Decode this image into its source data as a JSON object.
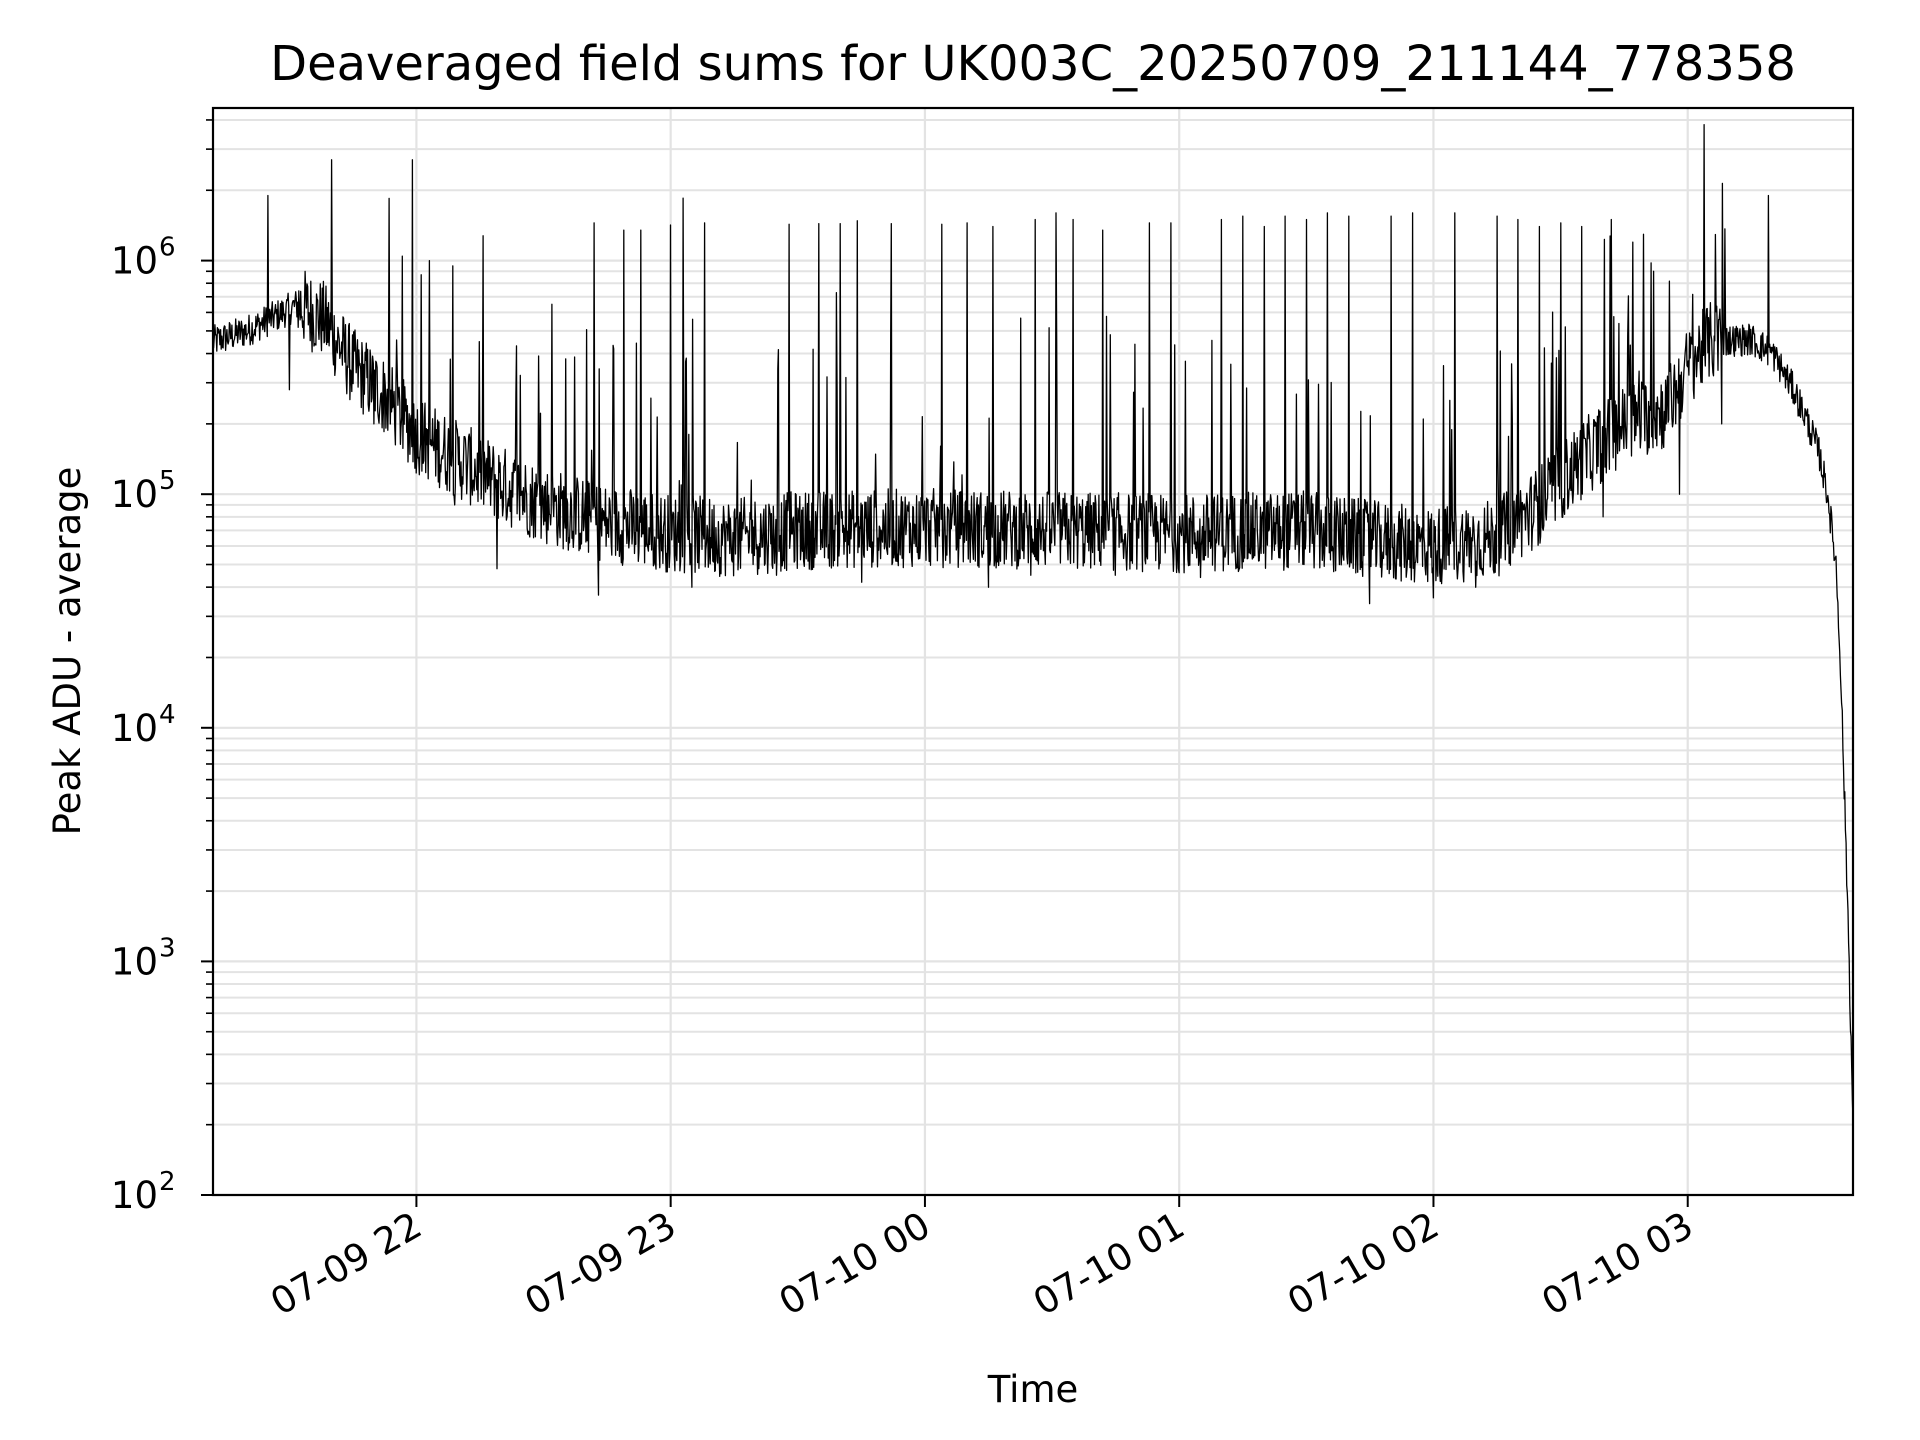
{
  "chart_data": {
    "type": "line",
    "title": "Deaveraged field sums for UK003C_20250709_211144_778358",
    "xlabel": "Time",
    "ylabel": "Peak ADU - average",
    "yscale": "log",
    "ylim": [
      100,
      4500000
    ],
    "xlim": [
      "07-09 21:12",
      "07-10 03:39"
    ],
    "grid": true,
    "line_color": "#000000",
    "grid_color": "#e3e3e3",
    "x_ticks": [
      {
        "label": "07-09 22",
        "value": "07-09 22:00"
      },
      {
        "label": "07-09 23",
        "value": "07-09 23:00"
      },
      {
        "label": "07-10 00",
        "value": "07-10 00:00"
      },
      {
        "label": "07-10 01",
        "value": "07-10 01:00"
      },
      {
        "label": "07-10 02",
        "value": "07-10 02:00"
      },
      {
        "label": "07-10 03",
        "value": "07-10 03:00"
      }
    ],
    "y_ticks": [
      {
        "base": "10",
        "exp": "2",
        "value": 100
      },
      {
        "base": "10",
        "exp": "3",
        "value": 1000
      },
      {
        "base": "10",
        "exp": "4",
        "value": 10000
      },
      {
        "base": "10",
        "exp": "5",
        "value": 100000
      },
      {
        "base": "10",
        "exp": "6",
        "value": 1000000
      }
    ],
    "series": [
      {
        "baseline": [
          [
            "07-09 21:12",
            450000
          ],
          [
            "07-09 21:20",
            500000
          ],
          [
            "07-09 21:27",
            580000
          ],
          [
            "07-09 21:32",
            650000
          ],
          [
            "07-09 21:38",
            560000
          ],
          [
            "07-09 21:45",
            350000
          ],
          [
            "07-09 21:52",
            270000
          ],
          [
            "07-09 22:00",
            180000
          ],
          [
            "07-09 22:10",
            140000
          ],
          [
            "07-09 22:20",
            110000
          ],
          [
            "07-09 22:30",
            90000
          ],
          [
            "07-09 22:45",
            75000
          ],
          [
            "07-09 23:00",
            68000
          ],
          [
            "07-09 23:15",
            65000
          ],
          [
            "07-09 23:30",
            70000
          ],
          [
            "07-10 00:00",
            72000
          ],
          [
            "07-10 00:30",
            70000
          ],
          [
            "07-10 01:00",
            68000
          ],
          [
            "07-10 01:30",
            70000
          ],
          [
            "07-10 01:50",
            62000
          ],
          [
            "07-10 02:00",
            60000
          ],
          [
            "07-10 02:15",
            65000
          ],
          [
            "07-10 02:25",
            90000
          ],
          [
            "07-10 02:35",
            140000
          ],
          [
            "07-10 02:45",
            200000
          ],
          [
            "07-10 02:55",
            230000
          ],
          [
            "07-10 03:00",
            350000
          ],
          [
            "07-10 03:05",
            450000
          ],
          [
            "07-10 03:15",
            460000
          ],
          [
            "07-10 03:20",
            400000
          ],
          [
            "07-10 03:25",
            280000
          ],
          [
            "07-10 03:28",
            210000
          ],
          [
            "07-10 03:31",
            150000
          ],
          [
            "07-10 03:33",
            100000
          ],
          [
            "07-10 03:35",
            50000
          ],
          [
            "07-10 03:36",
            20000
          ],
          [
            "07-10 03:37",
            5000
          ],
          [
            "07-10 03:38",
            1200
          ],
          [
            "07-10 03:39",
            200
          ]
        ],
        "spikes": [
          [
            "07-09 21:25",
            1900000
          ],
          [
            "07-09 21:30",
            1050000
          ],
          [
            "07-09 21:40",
            2700000
          ],
          [
            "07-09 21:59",
            2700000
          ],
          [
            "07-09 22:03",
            1000000
          ],
          [
            "07-09 22:32",
            650000
          ],
          [
            "07-09 22:42",
            1450000
          ],
          [
            "07-09 22:49",
            1350000
          ],
          [
            "07-09 22:53",
            1350000
          ],
          [
            "07-09 23:00",
            1420000
          ],
          [
            "07-09 23:03",
            1850000
          ],
          [
            "07-09 23:08",
            1450000
          ],
          [
            "07-09 23:28",
            1430000
          ],
          [
            "07-09 23:35",
            1440000
          ],
          [
            "07-09 23:40",
            1440000
          ],
          [
            "07-09 23:44",
            1480000
          ],
          [
            "07-09 23:52",
            1440000
          ],
          [
            "07-10 00:04",
            1430000
          ],
          [
            "07-10 00:10",
            1450000
          ],
          [
            "07-10 00:16",
            1400000
          ],
          [
            "07-10 00:26",
            1500000
          ],
          [
            "07-10 00:31",
            1600000
          ],
          [
            "07-10 00:35",
            1500000
          ],
          [
            "07-10 00:42",
            1350000
          ],
          [
            "07-10 00:45",
            2450000
          ],
          [
            "07-10 00:53",
            1450000
          ],
          [
            "07-10 00:58",
            1450000
          ],
          [
            "07-10 01:05",
            1450000
          ],
          [
            "07-10 01:10",
            1500000
          ],
          [
            "07-10 01:15",
            1550000
          ],
          [
            "07-10 01:20",
            1400000
          ],
          [
            "07-10 01:25",
            1550000
          ],
          [
            "07-10 01:30",
            1500000
          ],
          [
            "07-10 01:35",
            1600000
          ],
          [
            "07-10 01:40",
            1550000
          ],
          [
            "07-10 01:45",
            1500000
          ],
          [
            "07-10 01:50",
            1550000
          ],
          [
            "07-10 01:55",
            1600000
          ],
          [
            "07-10 02:00",
            1550000
          ],
          [
            "07-10 02:05",
            1600000
          ],
          [
            "07-10 02:10",
            1450000
          ],
          [
            "07-10 02:15",
            1550000
          ],
          [
            "07-10 02:20",
            1500000
          ],
          [
            "07-10 02:25",
            1400000
          ],
          [
            "07-10 02:30",
            1450000
          ],
          [
            "07-10 02:35",
            1400000
          ],
          [
            "07-10 02:42",
            1500000
          ],
          [
            "07-10 02:47",
            1200000
          ],
          [
            "07-10 02:52",
            900000
          ],
          [
            "07-10 03:19",
            1900000
          ]
        ],
        "dips": [
          [
            "07-09 21:30",
            280000
          ],
          [
            "07-09 21:50",
            200000
          ],
          [
            "07-09 22:09",
            90000
          ],
          [
            "07-09 22:19",
            48000
          ],
          [
            "07-09 22:43",
            37000
          ],
          [
            "07-09 23:05",
            40000
          ],
          [
            "07-09 23:25",
            45000
          ],
          [
            "07-09 23:45",
            42000
          ],
          [
            "07-10 00:15",
            40000
          ],
          [
            "07-10 00:25",
            45000
          ],
          [
            "07-10 00:45",
            45000
          ],
          [
            "07-10 01:05",
            44000
          ],
          [
            "07-10 01:45",
            34000
          ],
          [
            "07-10 02:00",
            36000
          ],
          [
            "07-10 02:10",
            40000
          ],
          [
            "07-10 02:40",
            80000
          ],
          [
            "07-10 02:58",
            100000
          ],
          [
            "07-10 03:08",
            200000
          ]
        ]
      }
    ]
  }
}
